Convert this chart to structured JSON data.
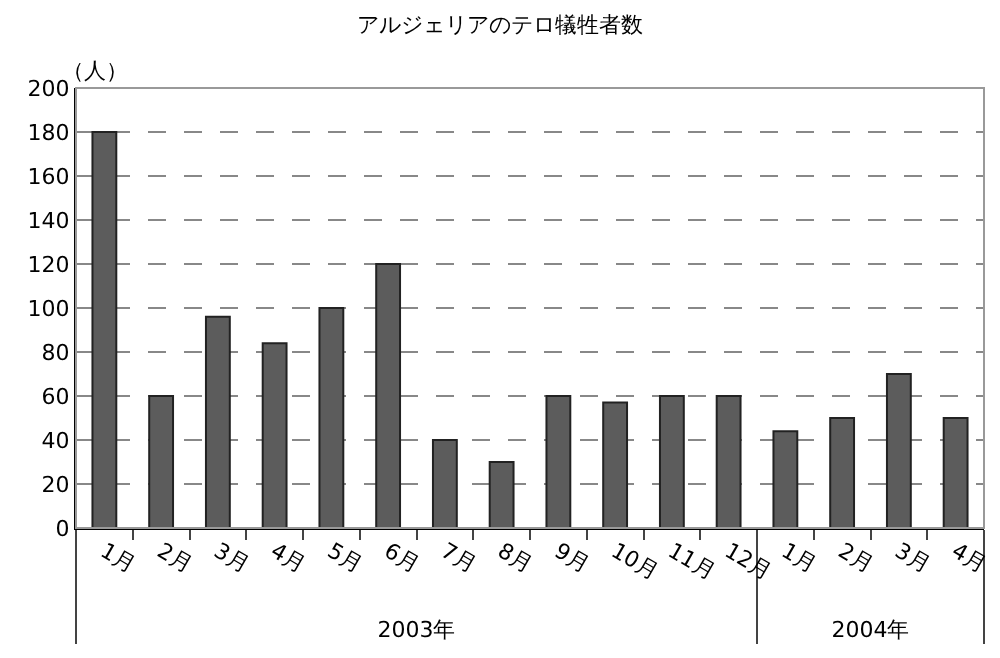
{
  "chart_data": {
    "type": "bar",
    "title": "アルジェリアのテロ犠牲者数",
    "ylabel": "（人）",
    "categories": [
      "1月",
      "2月",
      "3月",
      "4月",
      "5月",
      "6月",
      "7月",
      "8月",
      "9月",
      "10月",
      "11月",
      "12月",
      "1月",
      "2月",
      "3月",
      "4月"
    ],
    "values": [
      180,
      60,
      96,
      84,
      100,
      120,
      40,
      30,
      60,
      57,
      60,
      60,
      44,
      50,
      70,
      50
    ],
    "color": "#5c5c5c",
    "annotations": [
      "2003年",
      "2004年"
    ],
    "ylim": [
      0,
      200
    ],
    "yticks": [
      0,
      20,
      40,
      60,
      80,
      100,
      120,
      140,
      160,
      180,
      200
    ],
    "grid": "y"
  }
}
